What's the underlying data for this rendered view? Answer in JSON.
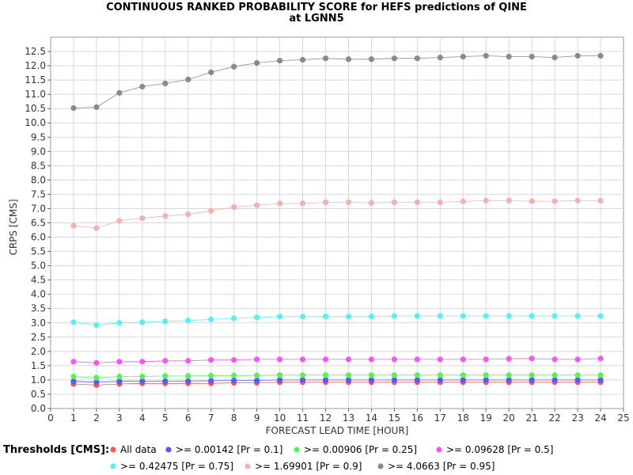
{
  "chart_data": {
    "type": "line",
    "title_lines": [
      "CONTINUOUS RANKED PROBABILITY SCORE for HEFS predictions of QINE",
      "at LGNN5"
    ],
    "xlabel": "FORECAST LEAD TIME [HOUR]",
    "ylabel": "CRPS [CMS]",
    "xlim": [
      0,
      25
    ],
    "ylim": [
      0,
      13.0
    ],
    "x_ticks": [
      0,
      1,
      2,
      3,
      4,
      5,
      6,
      7,
      8,
      9,
      10,
      11,
      12,
      13,
      14,
      15,
      16,
      17,
      18,
      19,
      20,
      21,
      22,
      23,
      24,
      25
    ],
    "y_ticks": [
      0.0,
      0.5,
      1.0,
      1.5,
      2.0,
      2.5,
      3.0,
      3.5,
      4.0,
      4.5,
      5.0,
      5.5,
      6.0,
      6.5,
      7.0,
      7.5,
      8.0,
      8.5,
      9.0,
      9.5,
      10.0,
      10.5,
      11.0,
      11.5,
      12.0,
      12.5
    ],
    "x_tick_labels": [
      "0",
      "1",
      "2",
      "3",
      "4",
      "5",
      "6",
      "7",
      "8",
      "9",
      "10",
      "11",
      "12",
      "13",
      "14",
      "15",
      "16",
      "17",
      "18",
      "19",
      "20",
      "21",
      "22",
      "23",
      "24",
      "25"
    ],
    "y_tick_labels": [
      "0.0",
      "0.5",
      "1.0",
      "1.5",
      "2.0",
      "2.5",
      "3.0",
      "3.5",
      "4.0",
      "4.5",
      "5.0",
      "5.5",
      "6.0",
      "6.5",
      "7.0",
      "7.5",
      "8.0",
      "8.5",
      "9.0",
      "9.5",
      "10.0",
      "10.5",
      "11.0",
      "11.5",
      "12.0",
      "12.5"
    ],
    "grid": true,
    "legend_title": "Thresholds [CMS]:",
    "legend_position": "bottom",
    "x": [
      1,
      2,
      3,
      4,
      5,
      6,
      7,
      8,
      9,
      10,
      11,
      12,
      13,
      14,
      15,
      16,
      17,
      18,
      19,
      20,
      21,
      22,
      23,
      24
    ],
    "series": [
      {
        "name": "All data",
        "color": "#f05a5a",
        "values": [
          0.86,
          0.82,
          0.86,
          0.88,
          0.88,
          0.88,
          0.88,
          0.9,
          0.9,
          0.92,
          0.92,
          0.92,
          0.92,
          0.92,
          0.92,
          0.92,
          0.92,
          0.92,
          0.92,
          0.92,
          0.92,
          0.92,
          0.92,
          0.92
        ]
      },
      {
        "name": ">= 0.00142 [Pr = 0.1]",
        "color": "#5a5af0",
        "values": [
          0.95,
          0.92,
          0.95,
          0.96,
          0.96,
          0.96,
          0.97,
          0.98,
          0.98,
          1.0,
          1.0,
          1.0,
          1.0,
          1.0,
          1.0,
          1.0,
          1.0,
          1.0,
          1.0,
          1.0,
          1.0,
          1.0,
          1.0,
          1.0
        ]
      },
      {
        "name": ">= 0.00906 [Pr = 0.25]",
        "color": "#5af05a",
        "values": [
          1.12,
          1.08,
          1.12,
          1.12,
          1.14,
          1.14,
          1.15,
          1.16,
          1.16,
          1.17,
          1.17,
          1.17,
          1.17,
          1.17,
          1.17,
          1.17,
          1.17,
          1.17,
          1.17,
          1.17,
          1.17,
          1.17,
          1.17,
          1.17
        ]
      },
      {
        "name": ">= 0.09628 [Pr = 0.5]",
        "color": "#f05af0",
        "values": [
          1.64,
          1.6,
          1.64,
          1.64,
          1.67,
          1.67,
          1.7,
          1.7,
          1.72,
          1.72,
          1.72,
          1.72,
          1.72,
          1.72,
          1.72,
          1.72,
          1.72,
          1.72,
          1.72,
          1.74,
          1.75,
          1.72,
          1.72,
          1.75
        ]
      },
      {
        "name": ">= 0.42475 [Pr = 0.75]",
        "color": "#5af0f0",
        "values": [
          3.02,
          2.92,
          3.0,
          3.02,
          3.05,
          3.08,
          3.12,
          3.16,
          3.19,
          3.22,
          3.22,
          3.22,
          3.22,
          3.22,
          3.24,
          3.24,
          3.24,
          3.24,
          3.24,
          3.24,
          3.24,
          3.24,
          3.24,
          3.24
        ]
      },
      {
        "name": ">= 1.69901 [Pr = 0.9]",
        "color": "#f5b0b0",
        "values": [
          6.4,
          6.32,
          6.57,
          6.66,
          6.74,
          6.8,
          6.92,
          7.05,
          7.12,
          7.18,
          7.18,
          7.22,
          7.22,
          7.2,
          7.22,
          7.22,
          7.22,
          7.25,
          7.28,
          7.28,
          7.26,
          7.26,
          7.28,
          7.28
        ]
      },
      {
        "name": ">= 4.0663 [Pr = 0.95]",
        "color": "#8a8a8a",
        "values": [
          10.52,
          10.55,
          11.05,
          11.27,
          11.38,
          11.52,
          11.77,
          11.97,
          12.1,
          12.18,
          12.21,
          12.26,
          12.23,
          12.23,
          12.26,
          12.26,
          12.29,
          12.32,
          12.35,
          12.32,
          12.32,
          12.29,
          12.35,
          12.35
        ]
      }
    ]
  }
}
